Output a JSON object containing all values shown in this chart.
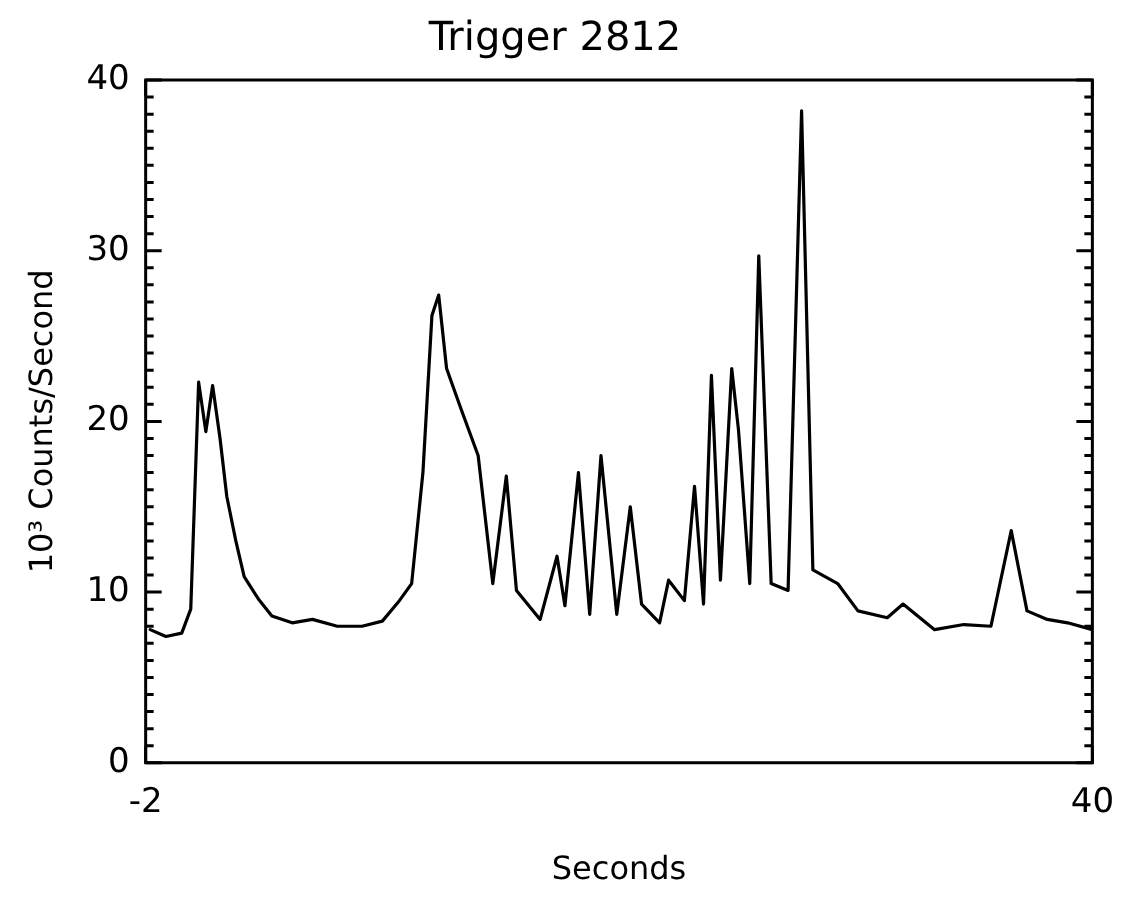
{
  "chart_data": {
    "type": "line",
    "title": "Trigger 2812",
    "xlabel": "Seconds",
    "ylabel": "10³ Counts/Second",
    "xlim": [
      -2,
      40
    ],
    "xticks": [
      -2,
      40
    ],
    "ylim": [
      0,
      40
    ],
    "yticks": [
      0,
      {
        "value": 1,
        "label": null
      },
      {
        "value": 2,
        "label": null
      },
      {
        "value": 3,
        "label": null
      },
      {
        "value": 4,
        "label": null
      },
      {
        "value": 5,
        "label": null
      },
      {
        "value": 6,
        "label": null
      },
      {
        "value": 7,
        "label": null
      },
      {
        "value": 8,
        "label": null
      },
      {
        "value": 9,
        "label": null
      },
      10,
      {
        "value": 11,
        "label": null
      },
      {
        "value": 12,
        "label": null
      },
      {
        "value": 13,
        "label": null
      },
      {
        "value": 14,
        "label": null
      },
      {
        "value": 15,
        "label": null
      },
      {
        "value": 16,
        "label": null
      },
      {
        "value": 17,
        "label": null
      },
      {
        "value": 18,
        "label": null
      },
      {
        "value": 19,
        "label": null
      },
      20,
      {
        "value": 21,
        "label": null
      },
      {
        "value": 22,
        "label": null
      },
      {
        "value": 23,
        "label": null
      },
      {
        "value": 24,
        "label": null
      },
      {
        "value": 25,
        "label": null
      },
      {
        "value": 26,
        "label": null
      },
      {
        "value": 27,
        "label": null
      },
      {
        "value": 28,
        "label": null
      },
      {
        "value": 29,
        "label": null
      },
      30,
      {
        "value": 31,
        "label": null
      },
      {
        "value": 32,
        "label": null
      },
      {
        "value": 33,
        "label": null
      },
      {
        "value": 34,
        "label": null
      },
      {
        "value": 35,
        "label": null
      },
      {
        "value": 36,
        "label": null
      },
      {
        "value": 37,
        "label": null
      },
      {
        "value": 38,
        "label": null
      },
      {
        "value": 39,
        "label": null
      },
      40
    ],
    "grid": false,
    "marker": "none",
    "line_style": "solid",
    "series": [
      {
        "color": "#000000",
        "x": [
          -1.8,
          -1.1,
          -0.4,
          0.0,
          0.35,
          0.67,
          0.97,
          1.3,
          1.6,
          2.0,
          2.37,
          3.0,
          3.6,
          4.5,
          5.4,
          6.5,
          7.6,
          8.5,
          9.2,
          9.8,
          10.3,
          10.7,
          11.0,
          11.35,
          12.0,
          12.75,
          13.4,
          14.0,
          14.45,
          15.5,
          16.25,
          16.6,
          17.2,
          17.7,
          18.2,
          18.9,
          19.5,
          20.0,
          20.8,
          21.2,
          21.9,
          22.35,
          22.75,
          23.1,
          23.5,
          24.0,
          24.3,
          24.8,
          25.2,
          25.75,
          26.5,
          27.1,
          27.6,
          28.7,
          29.6,
          30.9,
          31.6,
          33.0,
          34.3,
          35.5,
          36.4,
          37.1,
          38.0,
          38.9,
          40
        ],
        "values": [
          7.8,
          7.4,
          7.6,
          9.0,
          22.3,
          19.4,
          22.1,
          19.0,
          15.6,
          13.0,
          10.9,
          9.6,
          8.6,
          8.2,
          8.4,
          8.0,
          8.0,
          8.3,
          9.4,
          10.5,
          17.0,
          26.2,
          27.4,
          23.1,
          20.7,
          18.0,
          10.5,
          16.8,
          10.1,
          8.4,
          12.1,
          9.2,
          17.0,
          8.7,
          18.0,
          8.7,
          15.0,
          9.3,
          8.2,
          10.7,
          9.5,
          16.2,
          9.3,
          22.7,
          10.7,
          23.1,
          19.5,
          10.5,
          29.7,
          10.5,
          10.1,
          38.2,
          11.3,
          10.5,
          8.9,
          8.5,
          9.3,
          7.8,
          8.1,
          8.0,
          13.6,
          8.9,
          8.4,
          8.2,
          7.8
        ]
      }
    ]
  }
}
